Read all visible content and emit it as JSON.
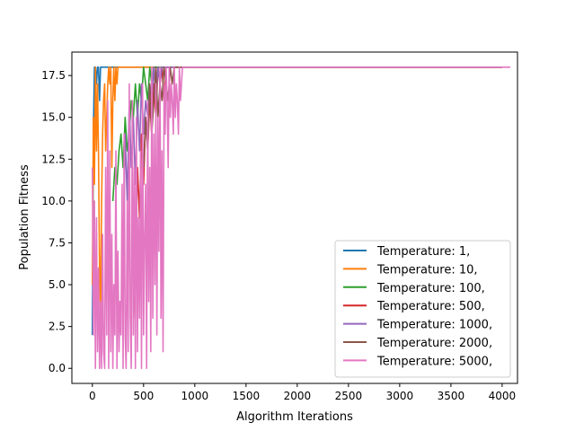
{
  "chart_data": {
    "type": "line",
    "title": "",
    "xlabel": "Algorithm Iterations",
    "ylabel": "Population Fitness",
    "xlim": [
      -200,
      4150
    ],
    "ylim": [
      -0.9,
      18.9
    ],
    "xticks": [
      0,
      500,
      1000,
      1500,
      2000,
      2500,
      3000,
      3500,
      4000
    ],
    "xtick_labels": [
      "0",
      "500",
      "1000",
      "1500",
      "2000",
      "2500",
      "3000",
      "3500",
      "4000"
    ],
    "yticks": [
      0.0,
      2.5,
      5.0,
      7.5,
      10.0,
      12.5,
      15.0,
      17.5
    ],
    "ytick_labels": [
      "0.0",
      "2.5",
      "5.0",
      "7.5",
      "10.0",
      "12.5",
      "15.0",
      "17.5"
    ],
    "grid": false,
    "legend_position": "lower-right",
    "series": [
      {
        "name": "Temperature: 1,",
        "color": "#1f77b4",
        "x": [
          0,
          5,
          10,
          15,
          20,
          25,
          30,
          40,
          50,
          60,
          70,
          80,
          90,
          100,
          110,
          120,
          150,
          4000
        ],
        "y": [
          2,
          8,
          14,
          16,
          18,
          16,
          18,
          17,
          18,
          18,
          16,
          18,
          18,
          18,
          18,
          18,
          18,
          18
        ]
      },
      {
        "name": "Temperature: 10,",
        "color": "#ff7f0e",
        "x": [
          0,
          10,
          20,
          30,
          40,
          50,
          60,
          70,
          80,
          90,
          100,
          110,
          120,
          130,
          140,
          150,
          160,
          170,
          180,
          190,
          200,
          210,
          220,
          230,
          240,
          250,
          260,
          280,
          300,
          4000
        ],
        "y": [
          5,
          15,
          11,
          18,
          13,
          17,
          13,
          6,
          3,
          10,
          14,
          16,
          17,
          13,
          15,
          17,
          18,
          17,
          18,
          12,
          16,
          18,
          16,
          18,
          17,
          18,
          18,
          18,
          18,
          18
        ]
      },
      {
        "name": "Temperature: 100,",
        "color": "#2ca02c",
        "x": [
          200,
          220,
          240,
          260,
          280,
          300,
          320,
          340,
          360,
          380,
          400,
          420,
          440,
          460,
          480,
          500,
          520,
          540,
          560,
          580,
          600,
          620,
          640,
          660,
          4000
        ],
        "y": [
          10,
          12,
          11,
          13,
          14,
          12,
          15,
          13,
          14,
          16,
          15,
          17,
          15,
          17,
          16,
          18,
          17,
          16,
          18,
          17,
          18,
          18,
          18,
          18,
          18
        ]
      },
      {
        "name": "Temperature: 500,",
        "color": "#d62728",
        "x": [
          400,
          420,
          440,
          460,
          480,
          500,
          520,
          540,
          560,
          580,
          600,
          620,
          640,
          660,
          680,
          700,
          720,
          740,
          760,
          780,
          800,
          4000
        ],
        "y": [
          3,
          6,
          12,
          9,
          14,
          11,
          15,
          13,
          16,
          14,
          17,
          15,
          18,
          17,
          18,
          16,
          18,
          18,
          18,
          18,
          18,
          18
        ]
      },
      {
        "name": "Temperature: 1000,",
        "color": "#9467bd",
        "x": [
          300,
          320,
          340,
          360,
          380,
          400,
          420,
          440,
          460,
          480,
          500,
          520,
          540,
          560,
          580,
          600,
          620,
          640,
          660,
          680,
          700,
          720,
          740,
          760,
          4000
        ],
        "y": [
          6,
          14,
          10,
          16,
          12,
          15,
          11,
          16,
          13,
          17,
          14,
          16,
          15,
          17,
          16,
          18,
          16,
          18,
          17,
          18,
          18,
          18,
          18,
          18,
          18
        ]
      },
      {
        "name": "Temperature: 2000,",
        "color": "#8c564b",
        "x": [
          500,
          520,
          540,
          560,
          580,
          600,
          620,
          640,
          660,
          680,
          700,
          720,
          740,
          760,
          780,
          800,
          820,
          840,
          860,
          4000
        ],
        "y": [
          12,
          15,
          13,
          17,
          14,
          16,
          18,
          15,
          17,
          16,
          18,
          17,
          16,
          18,
          17,
          18,
          18,
          18,
          18,
          18
        ]
      },
      {
        "name": "Temperature: 5000,",
        "color": "#e377c2",
        "x": [
          0,
          10,
          20,
          30,
          40,
          50,
          60,
          70,
          80,
          90,
          100,
          110,
          120,
          130,
          140,
          150,
          160,
          170,
          180,
          190,
          200,
          210,
          220,
          230,
          240,
          250,
          260,
          270,
          280,
          290,
          300,
          310,
          320,
          330,
          340,
          350,
          360,
          370,
          380,
          390,
          400,
          410,
          420,
          430,
          440,
          450,
          460,
          470,
          480,
          490,
          500,
          510,
          520,
          530,
          540,
          550,
          560,
          570,
          580,
          590,
          600,
          610,
          620,
          630,
          640,
          650,
          660,
          670,
          680,
          690,
          700,
          710,
          720,
          730,
          740,
          750,
          760,
          770,
          780,
          790,
          800,
          810,
          820,
          830,
          840,
          850,
          860,
          880,
          4000,
          4080
        ],
        "y": [
          12,
          2,
          10,
          0,
          9,
          1,
          6,
          0,
          4,
          0,
          8,
          1,
          0,
          12,
          2,
          16,
          0,
          13,
          1,
          8,
          0,
          5,
          2,
          13,
          0,
          7,
          1,
          4,
          2,
          11,
          0,
          14,
          2,
          0,
          10,
          1,
          17,
          3,
          0,
          16,
          2,
          12,
          0,
          15,
          1,
          9,
          3,
          13,
          0,
          17,
          2,
          8,
          11,
          0,
          16,
          4,
          12,
          1,
          18,
          3,
          14,
          5,
          17,
          2,
          15,
          7,
          18,
          3,
          13,
          1,
          17,
          14,
          18,
          16,
          12,
          18,
          15,
          17,
          16,
          14,
          18,
          15,
          17,
          16,
          14,
          18,
          16,
          18,
          18,
          18
        ]
      }
    ]
  }
}
